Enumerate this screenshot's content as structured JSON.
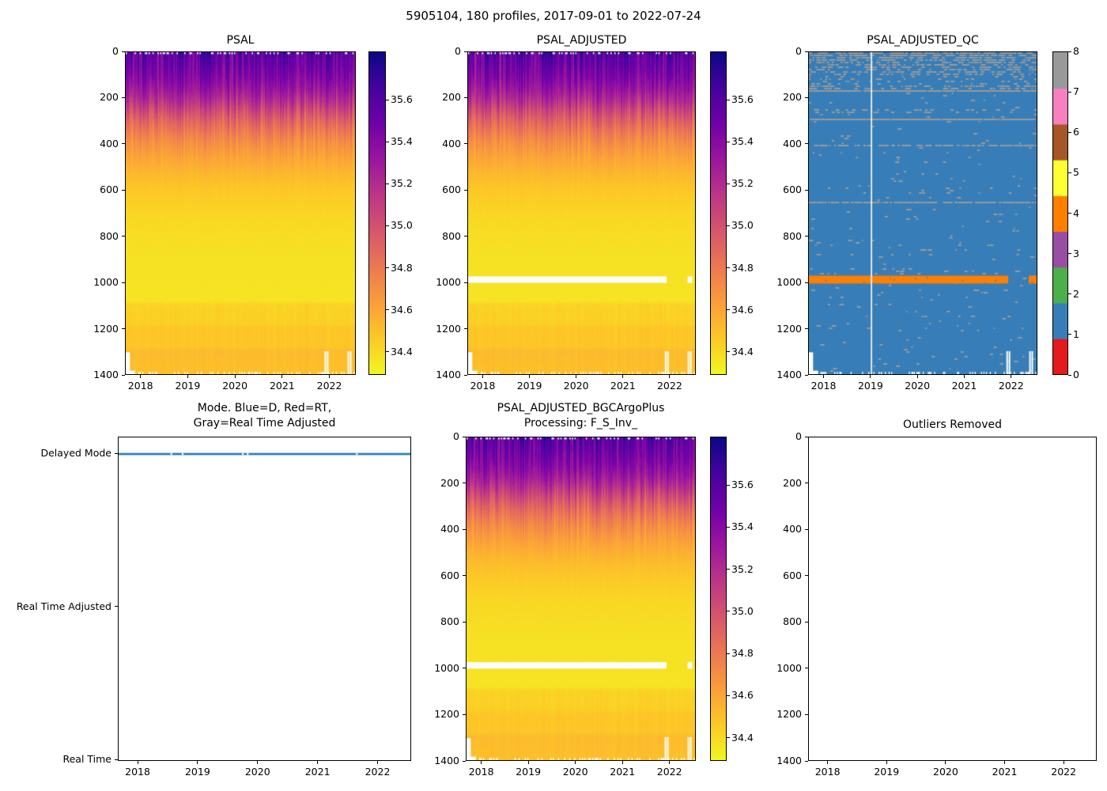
{
  "figure": {
    "suptitle": "5905104, 180 profiles, 2017-09-01 to 2022-07-24",
    "platform_id": "5905104",
    "profile_count": 180,
    "date_range": "2017-09-01 to 2022-07-24",
    "background": "#ffffff"
  },
  "palette": {
    "plasma_stops": [
      "#0d0887",
      "#46039f",
      "#7201a8",
      "#9c179e",
      "#bd3786",
      "#d8576b",
      "#ed7953",
      "#fb9f3a",
      "#fdca26",
      "#f0f921"
    ],
    "colormap_name": "plasma_r",
    "qc_set1": [
      "#e41a1c",
      "#377eb8",
      "#4daf4a",
      "#984ea3",
      "#ff7f00",
      "#ffff33",
      "#a65628",
      "#f781bf",
      "#999999"
    ],
    "qc_blue": "#377eb8",
    "qc_orange": "#ff7f00",
    "qc_gray": "#999999",
    "mode_line_blue": "#1f77b4",
    "missing_white": "#ffffff",
    "axis_color": "#000000"
  },
  "shared_axes": {
    "xlim": [
      2017.67,
      2022.56
    ],
    "x_ticks": [
      2018,
      2019,
      2020,
      2021,
      2022
    ],
    "depth_lim": [
      0,
      1400
    ],
    "depth_ticks": [
      0,
      200,
      400,
      600,
      800,
      1000,
      1200,
      1400
    ]
  },
  "salinity_scale": {
    "vmin": 34.29,
    "vmax": 35.83,
    "colorbar_ticks": [
      35.6,
      35.4,
      35.2,
      35.0,
      34.8,
      34.6,
      34.4
    ]
  },
  "depth_profile": {
    "depths": [
      0,
      40,
      80,
      120,
      160,
      200,
      240,
      280,
      320,
      360,
      400,
      450,
      500,
      550,
      600,
      700,
      800,
      900,
      1000,
      1080,
      1100,
      1180,
      1200,
      1280,
      1300,
      1400
    ],
    "mean_psal": [
      35.54,
      35.5,
      35.45,
      35.39,
      35.31,
      35.21,
      35.08,
      34.95,
      34.85,
      34.76,
      34.69,
      34.62,
      34.56,
      34.51,
      34.47,
      34.415,
      34.39,
      34.375,
      34.37,
      34.365,
      34.43,
      34.44,
      34.475,
      34.475,
      34.52,
      34.5
    ]
  },
  "chart_data": [
    {
      "id": "psal",
      "type": "heatmap",
      "title": "PSAL",
      "features": {
        "left_notch": [
          {
            "until_year": 2017.76,
            "below_depth": 1305
          },
          {
            "until_year": 2017.87,
            "below_depth": 1385
          }
        ],
        "right_gap_years": [
          2021.91,
          2021.96,
          2022.4,
          2022.45
        ],
        "top_edge_dashes": true,
        "bottom_edge_dashes": true
      }
    },
    {
      "id": "psal_adjusted",
      "type": "heatmap",
      "title": "PSAL_ADJUSTED",
      "features": {
        "masked_band": {
          "depth_range": [
            975,
            1003
          ],
          "x_year_segments": [
            [
              2017.67,
              2021.95
            ],
            [
              2022.4,
              2022.5
            ]
          ]
        },
        "left_notch": [
          {
            "until_year": 2017.76,
            "below_depth": 1305
          },
          {
            "until_year": 2017.87,
            "below_depth": 1385
          }
        ],
        "right_gap_years": [
          2021.91,
          2021.96,
          2022.4,
          2022.45
        ],
        "top_edge_dashes": true,
        "bottom_edge_dashes": true
      }
    },
    {
      "id": "psal_adjusted_qc",
      "type": "qc_heatmap",
      "title": "PSAL_ADJUSTED_QC",
      "qc": {
        "dominant_flag": 1,
        "flag_ticks": [
          0,
          1,
          2,
          3,
          4,
          5,
          6,
          7,
          8
        ],
        "speckle_flag": 8,
        "speckle_line_depths": [
          168,
          287,
          400,
          650
        ],
        "orange_band": {
          "flag": 4,
          "depth_range": [
            972,
            1006
          ],
          "x_year_segments": [
            [
              2017.67,
              2021.95
            ],
            [
              2022.39,
              2022.56
            ]
          ]
        },
        "missing_profile_year": 2019.0,
        "left_notch": [
          {
            "until_year": 2017.76,
            "below_depth": 1305
          },
          {
            "until_year": 2017.87,
            "below_depth": 1385
          }
        ],
        "right_gap_years": [
          2021.91,
          2021.96,
          2022.4,
          2022.45
        ],
        "bottom_edge_dashes": true
      }
    },
    {
      "id": "mode",
      "type": "line",
      "title_line1": "Mode. Blue=D, Red=RT,",
      "title_line2": "Gray=Real Time Adjusted",
      "y_categories": [
        "Real Time",
        "Real Time Adjusted",
        "Delayed Mode"
      ],
      "ylim": [
        -0.009,
        2.109
      ],
      "series": [
        {
          "name": "mode",
          "value": "Delayed Mode",
          "x_range": [
            2017.67,
            2022.56
          ]
        }
      ],
      "gap_years": [
        2018.54,
        2018.73,
        2019.74,
        2019.82,
        2021.65
      ]
    },
    {
      "id": "psal_adjusted_bgc",
      "type": "heatmap",
      "title_line1": "PSAL_ADJUSTED_BGCArgoPlus",
      "title_line2": "Processing: F_S_Inv_",
      "features": {
        "masked_band": {
          "depth_range": [
            975,
            1003
          ],
          "x_year_segments": [
            [
              2017.67,
              2021.95
            ],
            [
              2022.4,
              2022.5
            ]
          ]
        },
        "left_notch": [
          {
            "until_year": 2017.76,
            "below_depth": 1305
          },
          {
            "until_year": 2017.87,
            "below_depth": 1385
          }
        ],
        "right_gap_years": [
          2021.91,
          2021.96,
          2022.4,
          2022.45
        ],
        "top_edge_dashes": true,
        "bottom_edge_dashes": true
      }
    },
    {
      "id": "outliers_removed",
      "type": "empty",
      "title": "Outliers Removed"
    }
  ]
}
